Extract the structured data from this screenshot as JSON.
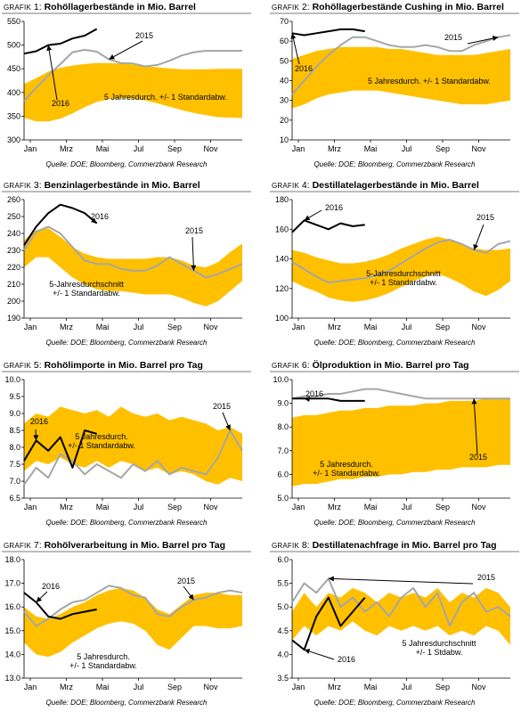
{
  "colors": {
    "band": "#FFC000",
    "line_2016": "#000000",
    "line_2015": "#A6A6A6",
    "rule": "#A6A6A6"
  },
  "months": [
    "Jan",
    "Mrz",
    "Mai",
    "Jul",
    "Sep",
    "Nov"
  ],
  "charts": [
    {
      "prefix": "GRAFIK",
      "number": "1:",
      "title": "Rohöllagerbestände in Mio. Barrel",
      "source": "Quelle: DOE; Bloomberg, Commerzbank Research",
      "ann_2016": "2016",
      "ann_2015": "2015",
      "ann_band": [
        "5 Jahresdurch. +/-  1 Standardabw."
      ],
      "chart_data": {
        "type": "line",
        "ylim": [
          300,
          550
        ],
        "yticks": [
          "300",
          "350",
          "400",
          "450",
          "500",
          "550"
        ],
        "band_upper": [
          418,
          430,
          444,
          452,
          457,
          460,
          462,
          462,
          461,
          459,
          456,
          453,
          451,
          449,
          449,
          449,
          450,
          450,
          450
        ],
        "band_lower": [
          347,
          339,
          339,
          345,
          356,
          369,
          380,
          386,
          388,
          387,
          383,
          377,
          370,
          363,
          357,
          352,
          348,
          347,
          346
        ],
        "series_2015": [
          382,
          410,
          436,
          460,
          485,
          490,
          486,
          470,
          462,
          461,
          455,
          458,
          467,
          478,
          485,
          488,
          488,
          488,
          488
        ],
        "series_2016": [
          482,
          487,
          500,
          503,
          514,
          520,
          534
        ]
      }
    },
    {
      "prefix": "GRAFIK",
      "number": "2:",
      "title": "Rohöllagerbestände Cushing in Mio. Barrel",
      "source": "Quelle: DOE; Bloomberg, Commerzbank Research",
      "ann_2016": "2016",
      "ann_2015": "2015",
      "ann_band": [
        "5 Jahresdurch. +/-  1 Standardabw."
      ],
      "chart_data": {
        "type": "line",
        "ylim": [
          10,
          70
        ],
        "yticks": [
          "10",
          "20",
          "30",
          "40",
          "50",
          "60",
          "70"
        ],
        "band_upper": [
          51,
          53,
          55,
          56,
          57,
          57,
          57,
          57,
          56,
          56,
          55,
          54,
          53,
          53,
          53,
          53,
          54,
          55,
          56
        ],
        "band_lower": [
          26,
          28,
          31,
          33,
          34,
          35,
          35,
          35,
          34,
          33,
          32,
          31,
          30,
          29,
          28,
          28,
          28,
          29,
          30
        ],
        "series_2015": [
          33,
          40,
          47,
          53,
          58,
          62,
          62,
          60,
          58,
          57,
          57,
          58,
          57,
          55,
          55,
          58,
          60,
          62,
          63
        ],
        "series_2016": [
          64,
          63,
          64,
          65,
          66,
          66,
          65
        ]
      }
    },
    {
      "prefix": "GRAFIK",
      "number": "3:",
      "title": "Benzinlagerbestände in Mio. Barrel",
      "source": "Quelle: DOE; Bloomberg, Commerzbank Research",
      "ann_2016": "2016",
      "ann_2015": "2015",
      "ann_band": [
        "5-Jahresdurchschnitt",
        "+/- 1 Standardabw."
      ],
      "chart_data": {
        "type": "line",
        "ylim": [
          190,
          260
        ],
        "yticks": [
          "190",
          "200",
          "210",
          "220",
          "230",
          "240",
          "250",
          "260"
        ],
        "band_upper": [
          236,
          242,
          243,
          238,
          232,
          228,
          226,
          225,
          225,
          225,
          225,
          226,
          226,
          224,
          221,
          220,
          223,
          229,
          234
        ],
        "band_lower": [
          220,
          226,
          226,
          220,
          214,
          210,
          207,
          206,
          206,
          205,
          204,
          204,
          204,
          202,
          199,
          197,
          200,
          206,
          212
        ],
        "series_2015": [
          230,
          241,
          244,
          240,
          232,
          224,
          222,
          222,
          219,
          218,
          218,
          221,
          226,
          222,
          218,
          214,
          216,
          219,
          222
        ],
        "series_2016": [
          233,
          244,
          252,
          257,
          255,
          252,
          246
        ]
      }
    },
    {
      "prefix": "GRAFIK",
      "number": "4:",
      "title": "Destillatelagerbestände in Mio. Barrel",
      "source": "Quelle: DOE; Bloomberg, Commerzbank Research",
      "ann_2016": "2016",
      "ann_2015": "2015",
      "ann_band": [
        "5-Jahresdurchschnitt",
        "+/- 1 Standardabw."
      ],
      "chart_data": {
        "type": "line",
        "ylim": [
          100,
          180
        ],
        "yticks": [
          "100",
          "120",
          "140",
          "160",
          "180"
        ],
        "band_upper": [
          146,
          144,
          141,
          139,
          137,
          137,
          138,
          140,
          143,
          147,
          150,
          153,
          155,
          153,
          150,
          147,
          146,
          146,
          147
        ],
        "band_lower": [
          125,
          121,
          118,
          114,
          112,
          111,
          112,
          114,
          117,
          121,
          125,
          128,
          130,
          127,
          123,
          118,
          115,
          119,
          125
        ],
        "series_2015": [
          138,
          133,
          128,
          124,
          125,
          126,
          127,
          129,
          132,
          137,
          142,
          147,
          151,
          153,
          150,
          146,
          144,
          150,
          152
        ],
        "series_2016": [
          158,
          166,
          163,
          160,
          164,
          162,
          163
        ]
      }
    },
    {
      "prefix": "GRAFIK",
      "number": "5:",
      "title": "Rohölimporte in Mio. Barrel pro Tag",
      "source": "Quelle: DOE; Bloomberg, Commerzbank Research",
      "ann_2016": "2016",
      "ann_2015": "2015",
      "ann_band": [
        "5 Jahresdurch.",
        "+/- 1 Standardabw."
      ],
      "chart_data": {
        "type": "line",
        "ylim": [
          6.5,
          10.0
        ],
        "yticks": [
          "6.5",
          "7.0",
          "7.5",
          "8.0",
          "8.5",
          "9.0",
          "9.5",
          "10.0"
        ],
        "band_upper": [
          8.7,
          9.0,
          8.9,
          9.2,
          9.1,
          9.0,
          9.1,
          8.9,
          9.2,
          9.0,
          8.9,
          9.0,
          8.8,
          8.9,
          8.8,
          8.7,
          8.5,
          8.6,
          8.4
        ],
        "band_lower": [
          7.3,
          7.6,
          7.5,
          7.7,
          7.5,
          7.4,
          7.6,
          7.4,
          7.6,
          7.5,
          7.3,
          7.4,
          7.2,
          7.3,
          7.2,
          7.0,
          6.9,
          7.1,
          7.0
        ],
        "series_2015": [
          6.9,
          7.4,
          7.1,
          7.8,
          7.6,
          7.2,
          7.5,
          7.3,
          7.1,
          7.5,
          7.3,
          7.6,
          7.2,
          7.4,
          7.3,
          7.2,
          7.7,
          8.5,
          7.9
        ],
        "series_2016": [
          7.6,
          8.2,
          7.9,
          8.3,
          7.4,
          8.5,
          8.4
        ]
      }
    },
    {
      "prefix": "GRAFIK",
      "number": "6:",
      "title": "Ölproduktion in Mio. Barrel pro Tag",
      "source": "Quelle: DOE; Bloomberg, Commerzbank Research",
      "ann_2016": "2016",
      "ann_2015": "2015",
      "ann_band": [
        "5 Jahresdurch.",
        "+/-  1 Standardabw."
      ],
      "chart_data": {
        "type": "line",
        "ylim": [
          5.0,
          10.0
        ],
        "yticks": [
          "5.0",
          "6.0",
          "7.0",
          "8.0",
          "9.0",
          "10.0"
        ],
        "band_upper": [
          8.4,
          8.5,
          8.5,
          8.6,
          8.7,
          8.7,
          8.8,
          8.8,
          8.9,
          8.9,
          8.9,
          9.0,
          9.0,
          9.1,
          9.1,
          9.1,
          9.2,
          9.2,
          9.2
        ],
        "band_lower": [
          5.5,
          5.6,
          5.6,
          5.7,
          5.8,
          5.8,
          5.9,
          5.9,
          6.0,
          6.0,
          6.1,
          6.1,
          6.2,
          6.2,
          6.3,
          6.3,
          6.3,
          6.4,
          6.4
        ],
        "series_2015": [
          9.2,
          9.3,
          9.3,
          9.4,
          9.4,
          9.5,
          9.6,
          9.6,
          9.5,
          9.4,
          9.3,
          9.2,
          9.2,
          9.2,
          9.2,
          9.2,
          9.2,
          9.2,
          9.2
        ],
        "series_2016": [
          9.2,
          9.2,
          9.2,
          9.2,
          9.1,
          9.1,
          9.1
        ]
      }
    },
    {
      "prefix": "GRAFIK",
      "number": "7:",
      "title": "Rohölverarbeitung in Mio. Barrel pro Tag",
      "source": "Quelle: DOE; Bloomberg, Commerzbank Research",
      "ann_2016": "2016",
      "ann_2015": "2015",
      "ann_band": [
        "5 Jahresdurch.",
        "+/- 1 Standardabw."
      ],
      "chart_data": {
        "type": "line",
        "ylim": [
          13.0,
          18.0
        ],
        "yticks": [
          "13.0",
          "14.0",
          "15.0",
          "16.0",
          "17.0",
          "18.0"
        ],
        "band_upper": [
          16.0,
          15.6,
          15.5,
          15.7,
          16.0,
          16.2,
          16.5,
          16.7,
          16.8,
          16.7,
          16.4,
          15.9,
          15.7,
          16.1,
          16.5,
          16.6,
          16.6,
          16.5,
          16.5
        ],
        "band_lower": [
          14.5,
          14.0,
          13.9,
          14.1,
          14.5,
          14.8,
          15.1,
          15.3,
          15.4,
          15.3,
          15.0,
          14.4,
          14.2,
          14.7,
          15.2,
          15.2,
          15.1,
          15.1,
          15.2
        ],
        "series_2015": [
          15.8,
          15.2,
          15.5,
          15.9,
          16.2,
          16.3,
          16.6,
          16.9,
          16.8,
          16.5,
          16.4,
          15.7,
          15.6,
          16.0,
          16.3,
          16.4,
          16.6,
          16.7,
          16.6
        ],
        "series_2016": [
          16.6,
          16.2,
          15.6,
          15.5,
          15.7,
          15.8,
          15.9
        ]
      }
    },
    {
      "prefix": "GRAFIK",
      "number": "8:",
      "title": "Destillatenachfrage in Mio. Barrel pro Tag",
      "source": "Quelle: DOE; Bloomberg, Commerzbank Research",
      "ann_2016": "2016",
      "ann_2015": "2015",
      "ann_band": [
        "5 Jahresdurchschnitt",
        "+/- 1 Stdabw."
      ],
      "chart_data": {
        "type": "line",
        "ylim": [
          3.5,
          6.0
        ],
        "yticks": [
          "3.5",
          "4.0",
          "4.5",
          "5.0",
          "5.5",
          "6.0"
        ],
        "band_upper": [
          4.9,
          5.3,
          5.0,
          5.3,
          5.2,
          5.4,
          5.3,
          5.1,
          5.3,
          5.2,
          5.3,
          5.2,
          5.4,
          5.1,
          5.3,
          5.2,
          5.4,
          5.3,
          5.0
        ],
        "band_lower": [
          4.3,
          4.6,
          4.4,
          4.6,
          4.5,
          4.7,
          4.5,
          4.4,
          4.6,
          4.5,
          4.6,
          4.5,
          4.6,
          4.4,
          4.5,
          4.4,
          4.6,
          4.5,
          4.2
        ],
        "series_2015": [
          5.1,
          5.5,
          5.3,
          5.6,
          5.0,
          5.2,
          4.9,
          5.1,
          4.8,
          5.2,
          5.4,
          5.0,
          5.3,
          4.6,
          5.1,
          5.3,
          4.9,
          5.0,
          4.8
        ],
        "series_2016": [
          4.3,
          4.1,
          4.8,
          5.2,
          4.6,
          4.9,
          5.2
        ]
      }
    }
  ]
}
